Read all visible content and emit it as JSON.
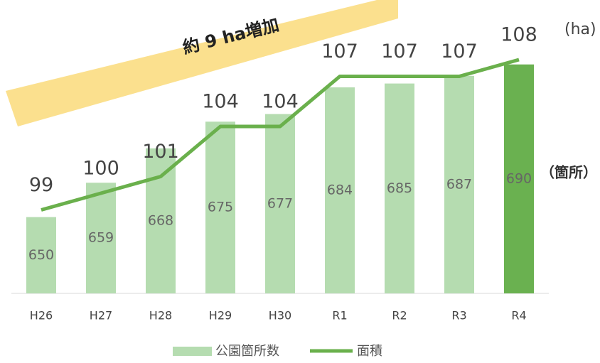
{
  "chart_data": {
    "type": "bar",
    "annotation": "約 9 ha増加",
    "y2_unit": "(ha)",
    "y_unit": "（箇所）",
    "categories": [
      "H26",
      "H27",
      "H28",
      "H29",
      "H30",
      "R1",
      "R2",
      "R3",
      "R4"
    ],
    "ylim": [
      630,
      700
    ],
    "y2lim": [
      94,
      110
    ],
    "series": [
      {
        "name": "公園箇所数",
        "type": "bar",
        "color": "#b5dcb0",
        "colors": [
          "#b5dcb0",
          "#b5dcb0",
          "#b5dcb0",
          "#b5dcb0",
          "#b5dcb0",
          "#b5dcb0",
          "#b5dcb0",
          "#b5dcb0",
          "#6ab150"
        ],
        "values": [
          650,
          659,
          668,
          675,
          677,
          684,
          685,
          687,
          690
        ]
      },
      {
        "name": "面積",
        "type": "line",
        "axis": "y2",
        "color": "#6ab04c",
        "values": [
          99,
          100,
          101,
          104,
          104,
          107,
          107,
          107,
          108
        ]
      }
    ],
    "legend": "bottom"
  }
}
